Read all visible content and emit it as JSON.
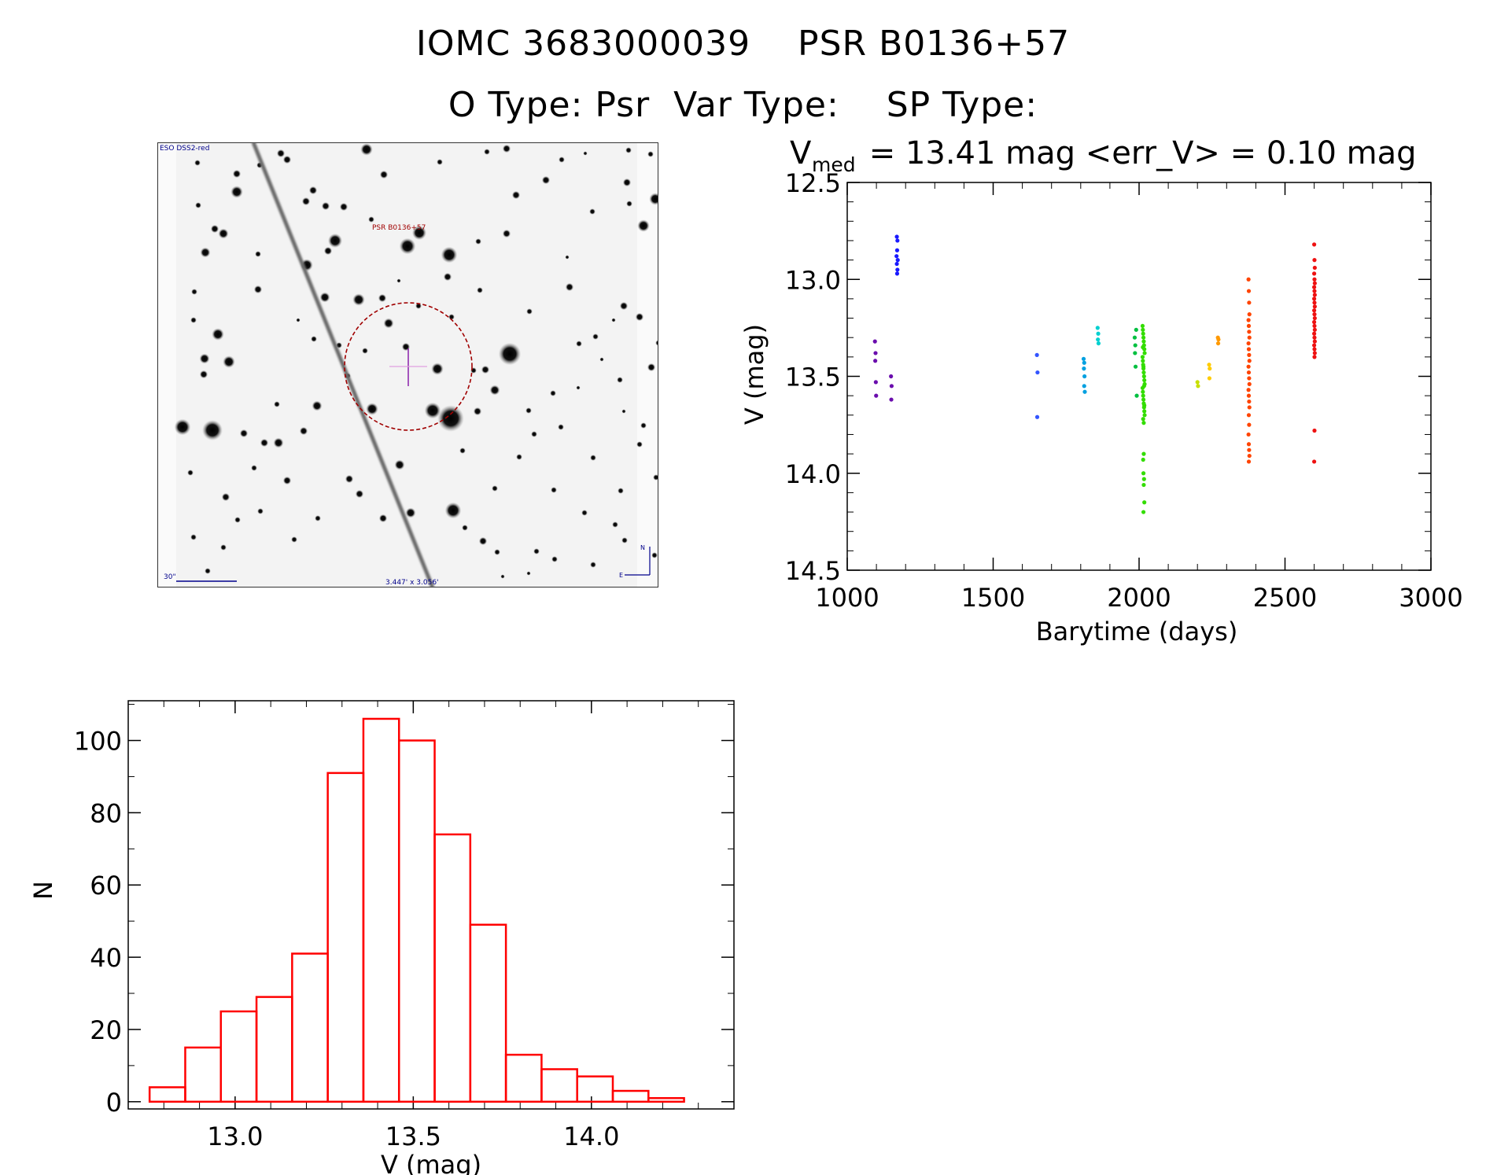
{
  "header": {
    "line1": "IOMC 3683000039    PSR B0136+57",
    "line2": "O Type: Psr  Var Type:    SP Type:"
  },
  "finder": {
    "survey_label": "ESO DSS2-red",
    "target_label": "PSR B0136+57",
    "scale_label": "30\"",
    "size_label": "3.447' x 3.056'",
    "compass_n": "N",
    "compass_e": "E"
  },
  "colors": {
    "hist": "#ff0000",
    "circle": "#a00000",
    "ticks_blue": "#00008b"
  },
  "chart_data": [
    {
      "type": "scatter",
      "title_main": "V",
      "title_sub": "med",
      "title_rest": " = 13.41 mag <err_V> = 0.10 mag",
      "xlabel": "Barytime (days)",
      "ylabel": "V (mag)",
      "xlim": [
        1000,
        3000
      ],
      "ylim": [
        14.5,
        12.5
      ],
      "y_inverted": true,
      "xticks": [
        1000,
        1500,
        2000,
        2500,
        3000
      ],
      "yticks": [
        "12.5",
        "13.0",
        "13.5",
        "14.0",
        "14.5"
      ],
      "series": [
        {
          "color": "#6a0dad",
          "points": [
            [
              1095,
              13.32
            ],
            [
              1097,
              13.38
            ],
            [
              1096,
              13.42
            ],
            [
              1098,
              13.53
            ],
            [
              1099,
              13.6
            ],
            [
              1150,
              13.5
            ],
            [
              1152,
              13.55
            ],
            [
              1151,
              13.62
            ]
          ]
        },
        {
          "color": "#1a1aff",
          "points": [
            [
              1170,
              12.78
            ],
            [
              1172,
              12.8
            ],
            [
              1171,
              12.85
            ],
            [
              1169,
              12.88
            ],
            [
              1173,
              12.9
            ],
            [
              1170,
              12.92
            ],
            [
              1172,
              12.95
            ],
            [
              1171,
              12.97
            ]
          ]
        },
        {
          "color": "#3355ff",
          "points": [
            [
              1650,
              13.39
            ],
            [
              1652,
              13.48
            ],
            [
              1651,
              13.71
            ]
          ]
        },
        {
          "color": "#00a0e0",
          "points": [
            [
              1810,
              13.41
            ],
            [
              1812,
              13.43
            ],
            [
              1811,
              13.46
            ],
            [
              1813,
              13.5
            ],
            [
              1812,
              13.55
            ],
            [
              1814,
              13.58
            ]
          ]
        },
        {
          "color": "#00d0d0",
          "points": [
            [
              1858,
              13.25
            ],
            [
              1860,
              13.28
            ],
            [
              1859,
              13.31
            ],
            [
              1861,
              13.33
            ]
          ]
        },
        {
          "color": "#00c040",
          "points": [
            [
              1985,
              13.3
            ],
            [
              1987,
              13.34
            ],
            [
              1986,
              13.38
            ],
            [
              1988,
              13.45
            ],
            [
              1990,
              13.26
            ],
            [
              1992,
              13.6
            ]
          ]
        },
        {
          "color": "#33dd00",
          "points": [
            [
              2012,
              13.24
            ],
            [
              2013,
              13.26
            ],
            [
              2014,
              13.28
            ],
            [
              2015,
              13.3
            ],
            [
              2016,
              13.32
            ],
            [
              2017,
              13.34
            ],
            [
              2018,
              13.36
            ],
            [
              2019,
              13.38
            ],
            [
              2012,
              13.4
            ],
            [
              2013,
              13.42
            ],
            [
              2014,
              13.44
            ],
            [
              2015,
              13.46
            ],
            [
              2016,
              13.48
            ],
            [
              2017,
              13.5
            ],
            [
              2018,
              13.52
            ],
            [
              2019,
              13.54
            ],
            [
              2012,
              13.56
            ],
            [
              2013,
              13.58
            ],
            [
              2014,
              13.6
            ],
            [
              2015,
              13.62
            ],
            [
              2016,
              13.64
            ],
            [
              2017,
              13.66
            ],
            [
              2018,
              13.68
            ],
            [
              2019,
              13.7
            ],
            [
              2014,
              13.72
            ],
            [
              2016,
              13.74
            ],
            [
              2013,
              13.35
            ],
            [
              2015,
              13.45
            ],
            [
              2017,
              13.55
            ],
            [
              2018,
              13.65
            ],
            [
              2016,
              13.9
            ],
            [
              2014,
              13.93
            ],
            [
              2015,
              14.0
            ],
            [
              2017,
              14.03
            ],
            [
              2016,
              14.06
            ],
            [
              2018,
              14.15
            ],
            [
              2015,
              14.2
            ]
          ]
        },
        {
          "color": "#c8e000",
          "points": [
            [
              2200,
              13.53
            ],
            [
              2202,
              13.55
            ]
          ]
        },
        {
          "color": "#ffcc00",
          "points": [
            [
              2240,
              13.44
            ],
            [
              2242,
              13.46
            ],
            [
              2241,
              13.51
            ]
          ]
        },
        {
          "color": "#ff9900",
          "points": [
            [
              2270,
              13.3
            ],
            [
              2272,
              13.31
            ],
            [
              2271,
              13.33
            ]
          ]
        },
        {
          "color": "#ff4400",
          "points": [
            [
              2375,
              13.0
            ],
            [
              2376,
              13.06
            ],
            [
              2377,
              13.12
            ],
            [
              2378,
              13.18
            ],
            [
              2375,
              13.21
            ],
            [
              2376,
              13.24
            ],
            [
              2377,
              13.27
            ],
            [
              2378,
              13.3
            ],
            [
              2375,
              13.33
            ],
            [
              2376,
              13.36
            ],
            [
              2377,
              13.39
            ],
            [
              2378,
              13.42
            ],
            [
              2375,
              13.45
            ],
            [
              2376,
              13.48
            ],
            [
              2377,
              13.51
            ],
            [
              2378,
              13.54
            ],
            [
              2375,
              13.57
            ],
            [
              2376,
              13.6
            ],
            [
              2377,
              13.63
            ],
            [
              2378,
              13.66
            ],
            [
              2376,
              13.7
            ],
            [
              2377,
              13.75
            ],
            [
              2375,
              13.8
            ],
            [
              2376,
              13.85
            ],
            [
              2377,
              13.88
            ],
            [
              2378,
              13.91
            ],
            [
              2376,
              13.94
            ]
          ]
        },
        {
          "color": "#ee1111",
          "points": [
            [
              2600,
              12.82
            ],
            [
              2601,
              12.9
            ],
            [
              2602,
              12.94
            ],
            [
              2600,
              12.97
            ],
            [
              2601,
              13.0
            ],
            [
              2602,
              13.02
            ],
            [
              2600,
              13.04
            ],
            [
              2601,
              13.06
            ],
            [
              2602,
              13.08
            ],
            [
              2600,
              13.1
            ],
            [
              2601,
              13.12
            ],
            [
              2602,
              13.14
            ],
            [
              2600,
              13.16
            ],
            [
              2601,
              13.18
            ],
            [
              2602,
              13.2
            ],
            [
              2600,
              13.22
            ],
            [
              2601,
              13.24
            ],
            [
              2602,
              13.26
            ],
            [
              2600,
              13.28
            ],
            [
              2601,
              13.3
            ],
            [
              2602,
              13.32
            ],
            [
              2600,
              13.34
            ],
            [
              2601,
              13.36
            ],
            [
              2602,
              13.38
            ],
            [
              2601,
              13.4
            ],
            [
              2601,
              13.78
            ],
            [
              2600,
              13.94
            ]
          ]
        }
      ]
    },
    {
      "type": "bar",
      "histogram": true,
      "xlabel": "V (mag)",
      "ylabel": "N",
      "xlim": [
        12.7,
        14.4
      ],
      "ylim": [
        -2,
        111
      ],
      "xticks": [
        "13.0",
        "13.5",
        "14.0"
      ],
      "yticks": [
        "0",
        "20",
        "40",
        "60",
        "80",
        "100"
      ],
      "bin_edges": [
        12.76,
        12.86,
        12.96,
        13.06,
        13.16,
        13.26,
        13.36,
        13.46,
        13.56,
        13.66,
        13.76,
        13.86,
        13.96,
        14.06,
        14.16,
        14.26
      ],
      "values": [
        4,
        15,
        25,
        29,
        41,
        91,
        106,
        100,
        74,
        49,
        13,
        9,
        7,
        3,
        1
      ]
    }
  ]
}
